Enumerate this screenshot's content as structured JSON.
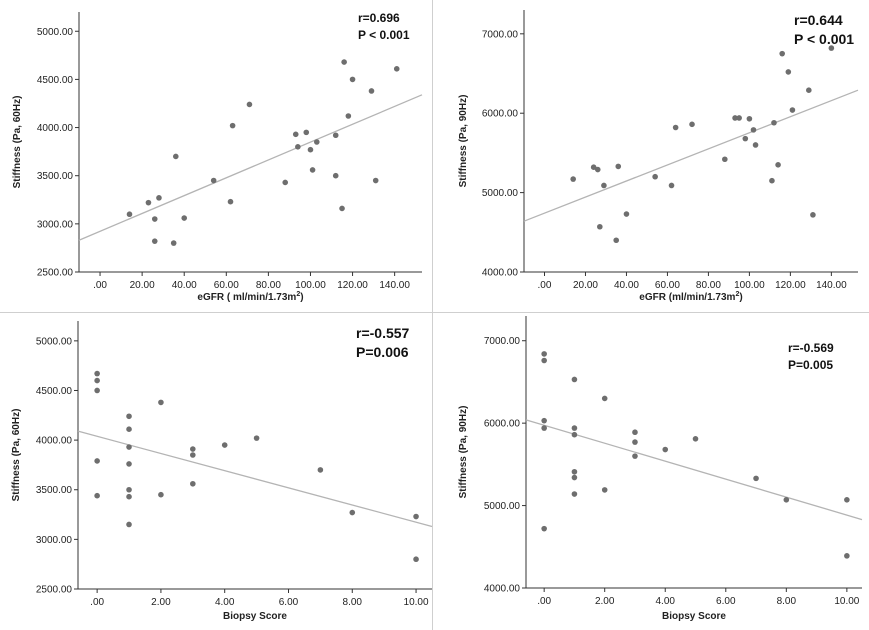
{
  "chart_data": [
    {
      "type": "scatter",
      "title": "",
      "xlabel": "eGFR ( ml/min/1.73m",
      "xlabel_sup": "2",
      "xlabel_end": ")",
      "ylabel": "Stiffness (Pa, 60Hz)",
      "xlim": [
        -10,
        153
      ],
      "ylim": [
        2500,
        5200
      ],
      "xticks": [
        0,
        20,
        40,
        60,
        80,
        100,
        120,
        140
      ],
      "xtick_labels": [
        ".00",
        "20.00",
        "40.00",
        "60.00",
        "80.00",
        "100.00",
        "120.00",
        "140.00"
      ],
      "yticks": [
        2500,
        3000,
        3500,
        4000,
        4500,
        5000
      ],
      "ytick_labels": [
        "2500.00",
        "3000.00",
        "3500.00",
        "4000.00",
        "4500.00",
        "5000.00"
      ],
      "stats": [
        "r=0.696",
        "P < 0.001"
      ],
      "fit_line": {
        "x": [
          -10,
          153
        ],
        "y": [
          2830,
          4340
        ]
      },
      "points": [
        [
          14,
          3100
        ],
        [
          23,
          3220
        ],
        [
          26,
          3050
        ],
        [
          26,
          2820
        ],
        [
          28,
          3270
        ],
        [
          35,
          2800
        ],
        [
          36,
          3700
        ],
        [
          40,
          3060
        ],
        [
          54,
          3450
        ],
        [
          62,
          3230
        ],
        [
          63,
          4020
        ],
        [
          71,
          4240
        ],
        [
          88,
          3430
        ],
        [
          93,
          3930
        ],
        [
          94,
          3800
        ],
        [
          98,
          3950
        ],
        [
          100,
          3770
        ],
        [
          101,
          3560
        ],
        [
          103,
          3850
        ],
        [
          112,
          3500
        ],
        [
          112,
          3920
        ],
        [
          115,
          3160
        ],
        [
          116,
          4680
        ],
        [
          118,
          4120
        ],
        [
          120,
          4500
        ],
        [
          129,
          4380
        ],
        [
          131,
          3450
        ],
        [
          141,
          4610
        ]
      ]
    },
    {
      "type": "scatter",
      "title": "",
      "xlabel": "eGFR (ml/min/1.73m",
      "xlabel_sup": "2",
      "xlabel_end": ")",
      "ylabel": "Stiffness (Pa, 90Hz)",
      "xlim": [
        -10,
        153
      ],
      "ylim": [
        4000,
        7300
      ],
      "xticks": [
        0,
        20,
        40,
        60,
        80,
        100,
        120,
        140
      ],
      "xtick_labels": [
        ".00",
        "20.00",
        "40.00",
        "60.00",
        "80.00",
        "100.00",
        "120.00",
        "140.00"
      ],
      "yticks": [
        4000,
        5000,
        6000,
        7000
      ],
      "ytick_labels": [
        "4000.00",
        "5000.00",
        "6000.00",
        "7000.00"
      ],
      "stats": [
        "r=0.644",
        "P < 0.001"
      ],
      "fit_line": {
        "x": [
          -10,
          153
        ],
        "y": [
          4640,
          6290
        ]
      },
      "points": [
        [
          14,
          5170
        ],
        [
          24,
          5320
        ],
        [
          26,
          5290
        ],
        [
          27,
          4570
        ],
        [
          29,
          5090
        ],
        [
          35,
          4400
        ],
        [
          36,
          5330
        ],
        [
          40,
          4730
        ],
        [
          54,
          5200
        ],
        [
          62,
          5090
        ],
        [
          64,
          5820
        ],
        [
          72,
          5860
        ],
        [
          88,
          5420
        ],
        [
          93,
          5940
        ],
        [
          95,
          5940
        ],
        [
          98,
          5680
        ],
        [
          100,
          5930
        ],
        [
          102,
          5790
        ],
        [
          103,
          5600
        ],
        [
          111,
          5150
        ],
        [
          112,
          5880
        ],
        [
          114,
          5350
        ],
        [
          116,
          6750
        ],
        [
          119,
          6520
        ],
        [
          121,
          6040
        ],
        [
          129,
          6290
        ],
        [
          131,
          4720
        ],
        [
          140,
          6820
        ]
      ]
    },
    {
      "type": "scatter",
      "title": "",
      "xlabel": "Biopsy Score",
      "ylabel": "Stiffness (Pa, 60Hz)",
      "xlim": [
        -0.6,
        10.5
      ],
      "ylim": [
        2500,
        5200
      ],
      "xticks": [
        0,
        2,
        4,
        6,
        8,
        10
      ],
      "xtick_labels": [
        ".00",
        "2.00",
        "4.00",
        "6.00",
        "8.00",
        "10.00"
      ],
      "yticks": [
        2500,
        3000,
        3500,
        4000,
        4500,
        5000
      ],
      "ytick_labels": [
        "2500.00",
        "3000.00",
        "3500.00",
        "4000.00",
        "4500.00",
        "5000.00"
      ],
      "stats": [
        "r=-0.557",
        "P=0.006"
      ],
      "fit_line": {
        "x": [
          -0.6,
          10.5
        ],
        "y": [
          4090,
          3130
        ]
      },
      "points": [
        [
          0,
          4670
        ],
        [
          0,
          4600
        ],
        [
          0,
          4500
        ],
        [
          0,
          3790
        ],
        [
          0,
          3440
        ],
        [
          1,
          4240
        ],
        [
          1,
          4110
        ],
        [
          1,
          3930
        ],
        [
          1,
          3760
        ],
        [
          1,
          3500
        ],
        [
          1,
          3430
        ],
        [
          1,
          3150
        ],
        [
          2,
          4380
        ],
        [
          2,
          3450
        ],
        [
          3,
          3910
        ],
        [
          3,
          3850
        ],
        [
          3,
          3560
        ],
        [
          4,
          3950
        ],
        [
          5,
          4020
        ],
        [
          7,
          3700
        ],
        [
          8,
          3270
        ],
        [
          10,
          3230
        ],
        [
          10,
          2800
        ]
      ]
    },
    {
      "type": "scatter",
      "title": "",
      "xlabel": "Biopsy Score",
      "ylabel": "Stiffness (Pa, 90Hz)",
      "xlim": [
        -0.6,
        10.5
      ],
      "ylim": [
        4000,
        7300
      ],
      "xticks": [
        0,
        2,
        4,
        6,
        8,
        10
      ],
      "xtick_labels": [
        ".00",
        "2.00",
        "4.00",
        "6.00",
        "8.00",
        "10.00"
      ],
      "yticks": [
        4000,
        5000,
        6000,
        7000
      ],
      "ytick_labels": [
        "4000.00",
        "5000.00",
        "6000.00",
        "7000.00"
      ],
      "stats": [
        "r=-0.569",
        "P=0.005"
      ],
      "fit_line": {
        "x": [
          -0.6,
          10.5
        ],
        "y": [
          6040,
          4830
        ]
      },
      "points": [
        [
          0,
          6840
        ],
        [
          0,
          6760
        ],
        [
          0,
          6030
        ],
        [
          0,
          5940
        ],
        [
          0,
          4720
        ],
        [
          1,
          6530
        ],
        [
          1,
          5940
        ],
        [
          1,
          5860
        ],
        [
          1,
          5410
        ],
        [
          1,
          5340
        ],
        [
          1,
          5140
        ],
        [
          2,
          6300
        ],
        [
          2,
          5190
        ],
        [
          3,
          5890
        ],
        [
          3,
          5770
        ],
        [
          3,
          5600
        ],
        [
          4,
          5680
        ],
        [
          5,
          5810
        ],
        [
          7,
          5330
        ],
        [
          8,
          5070
        ],
        [
          10,
          5070
        ],
        [
          10,
          4390
        ]
      ]
    }
  ]
}
